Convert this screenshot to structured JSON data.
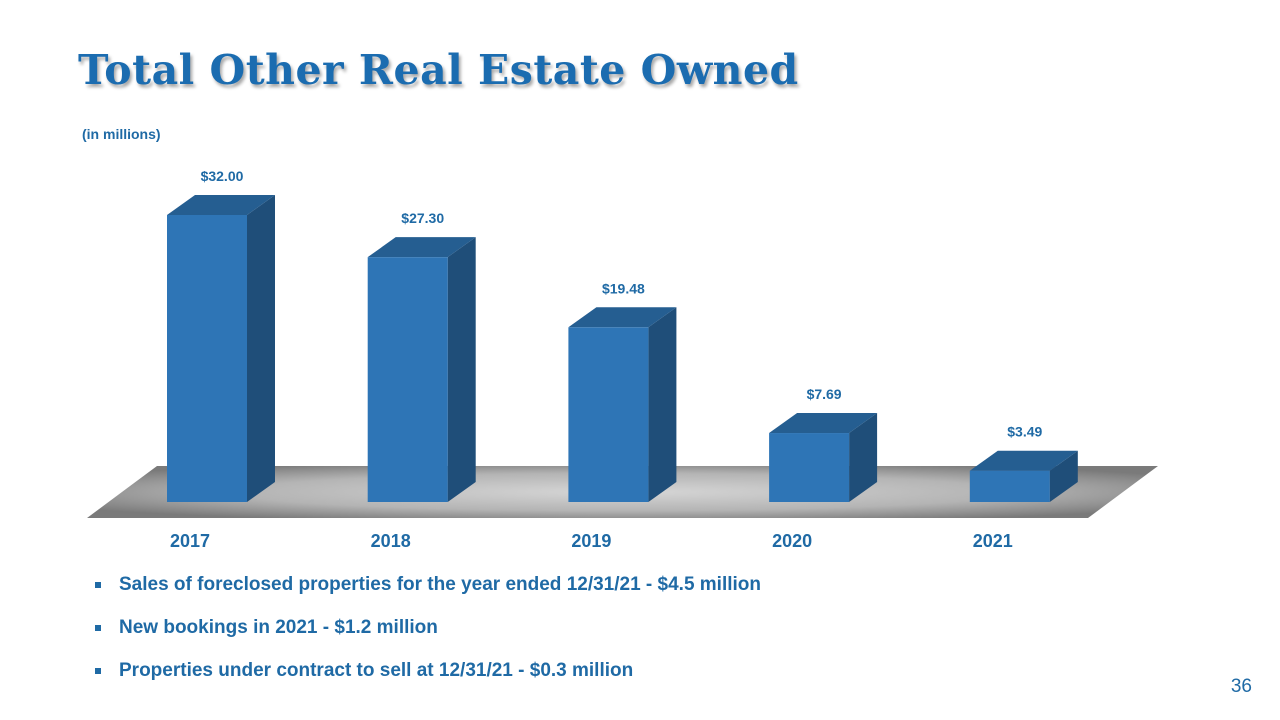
{
  "title": "Total Other Real Estate Owned",
  "subtitle": "(in millions)",
  "chart_data": {
    "type": "bar",
    "title": "Total Other Real Estate Owned",
    "ylabel": "(in millions)",
    "categories": [
      "2017",
      "2018",
      "2019",
      "2020",
      "2021"
    ],
    "values": [
      32.0,
      27.3,
      19.48,
      7.69,
      3.49
    ],
    "data_labels": [
      "$32.00",
      "$27.30",
      "$19.48",
      "$7.69",
      "$3.49"
    ],
    "ylim": [
      0,
      32
    ],
    "grid": false,
    "style": "3d",
    "colors": {
      "front": "#2E75B6",
      "side": "#1F4E79",
      "top": "#255E91",
      "label": "#1F6AA5"
    }
  },
  "bullets": [
    "Sales of foreclosed properties for the year ended 12/31/21 - $4.5 million",
    "New bookings in 2021 - $1.2 million",
    "Properties under contract to sell at 12/31/21 - $0.3 million"
  ],
  "page_number": "36"
}
